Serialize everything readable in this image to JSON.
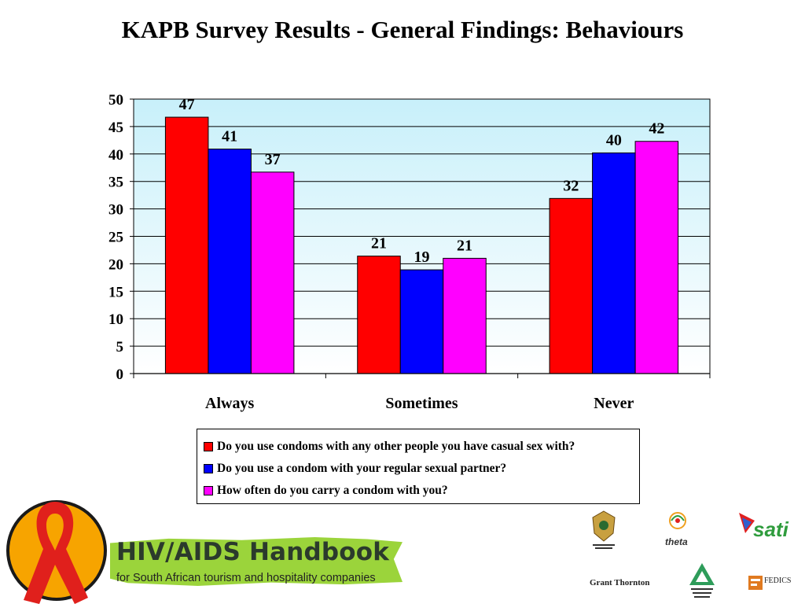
{
  "title": "KAPB Survey Results - General Findings: Behaviours",
  "chart_data": {
    "type": "bar",
    "title": "KAPB Survey Results - General Findings: Behaviours",
    "categories": [
      "Always",
      "Sometimes",
      "Never"
    ],
    "series": [
      {
        "name": "Do you use condoms with any other people you have casual sex with?",
        "values": [
          47,
          21,
          32
        ],
        "color": "#ff0000"
      },
      {
        "name": "Do you use a condom with your regular sexual partner?",
        "values": [
          41,
          19,
          40
        ],
        "color": "#0000ff"
      },
      {
        "name": "How often do you carry a condom with you?",
        "values": [
          37,
          21,
          42
        ],
        "color": "#ff00ff"
      }
    ],
    "plotted": [
      [
        46.7,
        21.4,
        31.9
      ],
      [
        40.9,
        18.9,
        40.2
      ],
      [
        36.7,
        21.0,
        42.3
      ]
    ],
    "ylim": [
      0,
      50
    ],
    "yticks": [
      0,
      5,
      10,
      15,
      20,
      25,
      30,
      35,
      40,
      45,
      50
    ],
    "xlabel": "",
    "ylabel": "",
    "grid": true,
    "legend_position": "bottom",
    "background_gradient": [
      "#c8f0fa",
      "#ffffff"
    ]
  },
  "footer": {
    "handbook_title": "HIV/AIDS Handbook",
    "handbook_subtitle": "for South African tourism and hospitality companies",
    "logos": {
      "theta": "theta",
      "sati": "sati",
      "grant_thornton": "Grant Thornton",
      "fedics": "FEDICS"
    }
  }
}
